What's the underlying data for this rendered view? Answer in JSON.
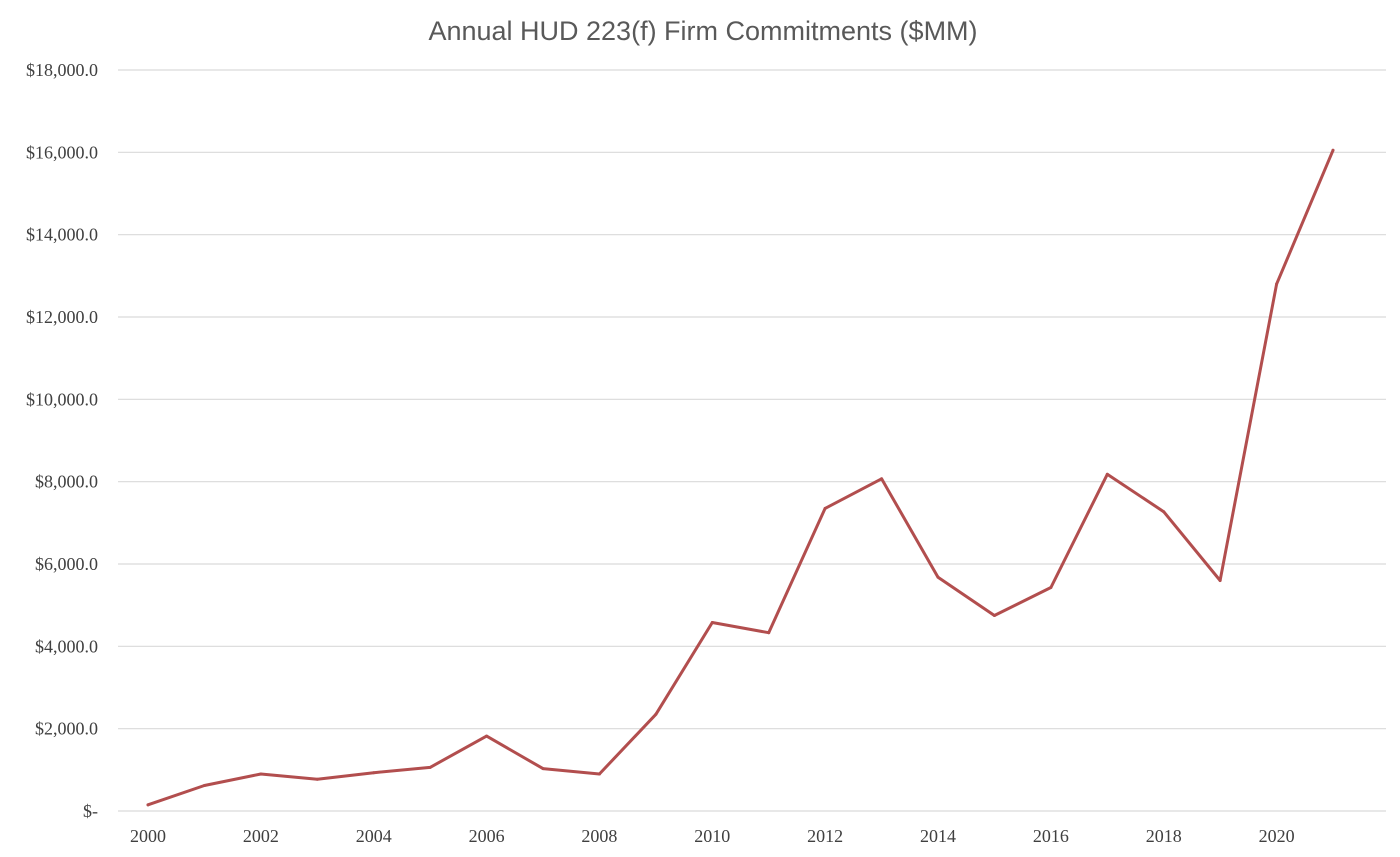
{
  "chart_data": {
    "type": "line",
    "title": "Annual HUD 223(f) Firm Commitments ($MM)",
    "xlabel": "",
    "ylabel": "",
    "ylim": [
      0,
      18000
    ],
    "grid": true,
    "legend": "none",
    "colors": {
      "line": "#B24E4E",
      "grid": "#D9D9D9",
      "text": "#404040",
      "title": "#595959"
    },
    "y_ticks": [
      {
        "value": 0,
        "label": "$-"
      },
      {
        "value": 2000,
        "label": "$2,000.0"
      },
      {
        "value": 4000,
        "label": "$4,000.0"
      },
      {
        "value": 6000,
        "label": "$6,000.0"
      },
      {
        "value": 8000,
        "label": "$8,000.0"
      },
      {
        "value": 10000,
        "label": "$10,000.0"
      },
      {
        "value": 12000,
        "label": "$12,000.0"
      },
      {
        "value": 14000,
        "label": "$14,000.0"
      },
      {
        "value": 16000,
        "label": "$16,000.0"
      },
      {
        "value": 18000,
        "label": "$18,000.0"
      }
    ],
    "x_tick_labels": [
      "2000",
      "2002",
      "2004",
      "2006",
      "2008",
      "2010",
      "2012",
      "2014",
      "2016",
      "2018",
      "2020"
    ],
    "x": [
      2000,
      2001,
      2002,
      2003,
      2004,
      2005,
      2006,
      2007,
      2008,
      2009,
      2010,
      2011,
      2012,
      2013,
      2014,
      2015,
      2016,
      2017,
      2018,
      2019,
      2020,
      2021
    ],
    "values": [
      150,
      620,
      900,
      770,
      930,
      1060,
      1820,
      1030,
      900,
      2350,
      4580,
      4330,
      7350,
      8070,
      5680,
      4750,
      5430,
      8180,
      7270,
      5600,
      12800,
      16050
    ]
  }
}
